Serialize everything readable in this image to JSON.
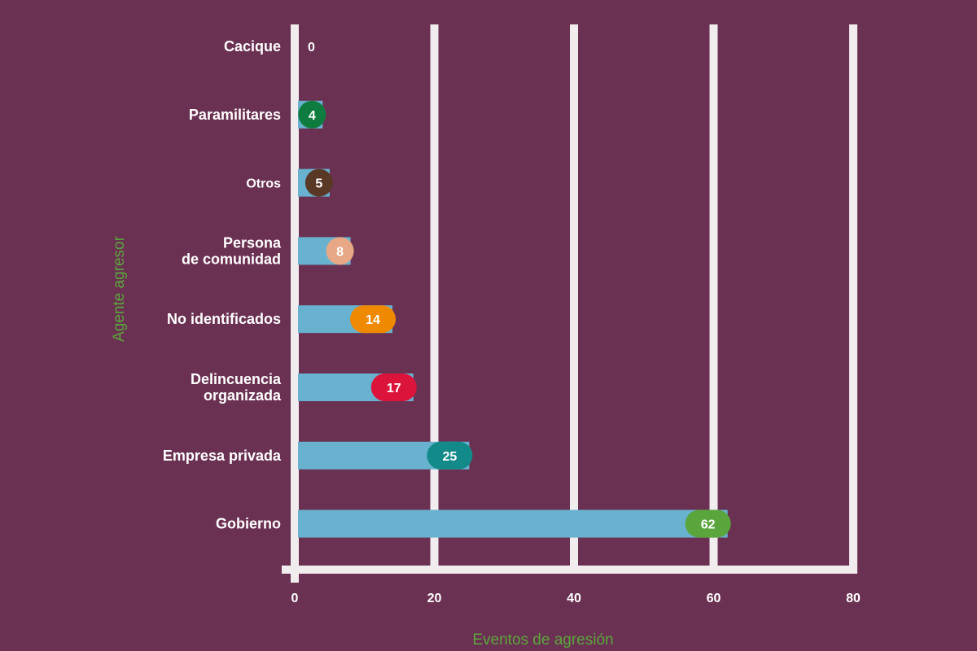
{
  "chart_data": {
    "type": "bar",
    "orientation": "horizontal",
    "categories": [
      [
        "Cacique"
      ],
      [
        "Paramilitares"
      ],
      [
        "Otros"
      ],
      [
        "Persona",
        "de comunidad"
      ],
      [
        "No identificados"
      ],
      [
        "Delincuencia",
        "organizada"
      ],
      [
        "Empresa privada"
      ],
      [
        "Gobierno"
      ]
    ],
    "values": [
      0,
      4,
      5,
      8,
      14,
      17,
      25,
      62
    ],
    "value_labels": [
      "0",
      "4",
      "5",
      "8",
      "14",
      "17",
      "25",
      "62"
    ],
    "pill_colors": [
      "#6b3152",
      "#0f7c3f",
      "#5a3826",
      "#e8a886",
      "#ef8a00",
      "#dc143c",
      "#138a8a",
      "#5aa63c"
    ],
    "bar_color": "#68b2d0",
    "grid_color": "#f1ecee",
    "xlabel": "Eventos de agresión",
    "ylabel": "Agente agresor",
    "xlim": [
      0,
      80
    ],
    "xticks": [
      0,
      20,
      40,
      60,
      80
    ],
    "xtick_labels": [
      "0",
      "20",
      "40",
      "60",
      "80"
    ],
    "grid": true
  }
}
